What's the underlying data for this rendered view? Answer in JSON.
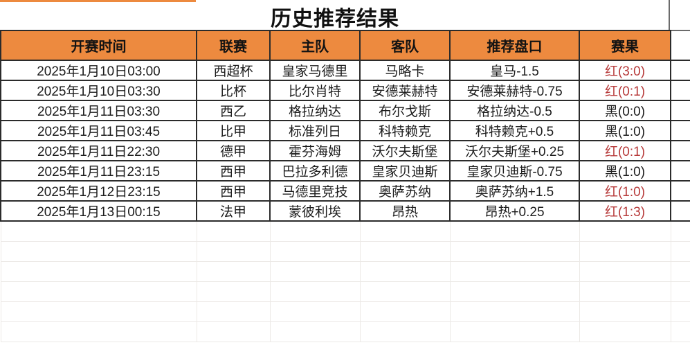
{
  "page": {
    "title": "历史推荐结果"
  },
  "table": {
    "columns": [
      "开赛时间",
      "联赛",
      "主队",
      "客队",
      "推荐盘口",
      "赛果"
    ],
    "rows": [
      {
        "time": "2025年1月10日03:00",
        "league": "西超杯",
        "home": "皇家马德里",
        "away": "马略卡",
        "handicap": "皇马-1.5",
        "result": "红(3:0)",
        "result_color": "red"
      },
      {
        "time": "2025年1月10日03:30",
        "league": "比杯",
        "home": "比尔肖特",
        "away": "安德莱赫特",
        "handicap": "安德莱赫特-0.75",
        "result": "红(0:1)",
        "result_color": "red"
      },
      {
        "time": "2025年1月11日03:30",
        "league": "西乙",
        "home": "格拉纳达",
        "away": "布尔戈斯",
        "handicap": "格拉纳达-0.5",
        "result": "黑(0:0)",
        "result_color": "black"
      },
      {
        "time": "2025年1月11日03:45",
        "league": "比甲",
        "home": "标准列日",
        "away": "科特赖克",
        "handicap": "科特赖克+0.5",
        "result": "黑(1:0)",
        "result_color": "black"
      },
      {
        "time": "2025年1月11日22:30",
        "league": "德甲",
        "home": "霍芬海姆",
        "away": "沃尔夫斯堡",
        "handicap": "沃尔夫斯堡+0.25",
        "result": "红(0:1)",
        "result_color": "red"
      },
      {
        "time": "2025年1月11日23:15",
        "league": "西甲",
        "home": "巴拉多利德",
        "away": "皇家贝迪斯",
        "handicap": "皇家贝迪斯-0.75",
        "result": "黑(1:0)",
        "result_color": "black"
      },
      {
        "time": "2025年1月12日23:15",
        "league": "西甲",
        "home": "马德里竞技",
        "away": "奥萨苏纳",
        "handicap": "奥萨苏纳+1.5",
        "result": "红(1:0)",
        "result_color": "red"
      },
      {
        "time": "2025年1月13日00:15",
        "league": "法甲",
        "home": "蒙彼利埃",
        "away": "昂热",
        "handicap": "昂热+0.25",
        "result": "红(1:3)",
        "result_color": "red"
      }
    ],
    "empty_row_count": 6
  },
  "colors": {
    "header_bg": "#ED8A3F",
    "win_red": "#B73A3A",
    "loss_black": "#1A1A1A",
    "grid_dark": "#2B2B2B",
    "grid_light": "#ECE9E6"
  }
}
